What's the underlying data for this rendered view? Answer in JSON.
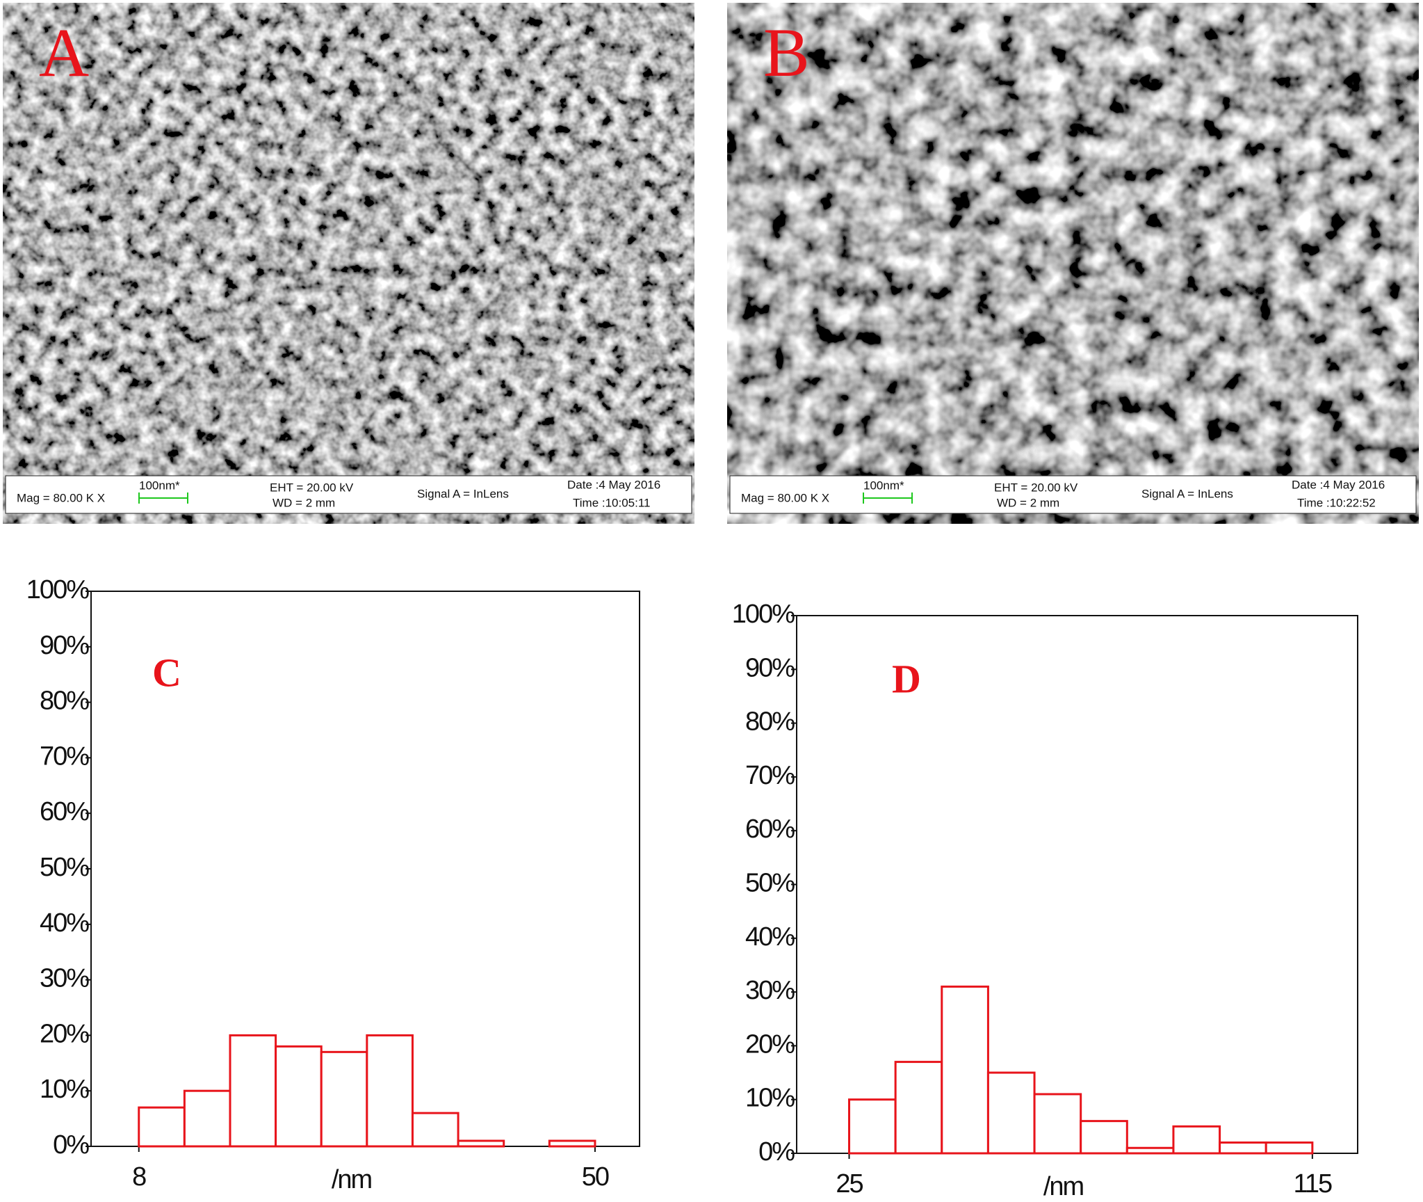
{
  "images": [
    {
      "label": "A",
      "mag": "Mag =  80.00 K X",
      "scale": "100nm*",
      "eht": "EHT = 20.00 kV",
      "wd": "WD =    2 mm",
      "signal": "Signal A = InLens",
      "date": "Date :4 May 2016",
      "time": "Time :10:05:11"
    },
    {
      "label": "B",
      "mag": "Mag =  80.00 K X",
      "scale": "100nm*",
      "eht": "EHT = 20.00 kV",
      "wd": "WD =    2 mm",
      "signal": "Signal A = InLens",
      "date": "Date :4 May 2016",
      "time": "Time :10:22:52"
    }
  ],
  "chart_data": [
    {
      "type": "histogram",
      "annotation": "C",
      "xlabel": "/nm",
      "color": "#e8141b",
      "bins": [
        8,
        12.2,
        16.4,
        20.6,
        24.8,
        29,
        33.2,
        37.4,
        41.6,
        45.8,
        50
      ],
      "values": [
        7,
        10,
        20,
        18,
        17,
        20,
        6,
        1,
        0,
        1
      ],
      "xlim": [
        3.6,
        54.1
      ],
      "xticks": [
        8,
        50
      ],
      "ylim": [
        0,
        100
      ],
      "yticks": [
        {
          "value": 0,
          "label": "0%"
        },
        {
          "value": 10,
          "label": "10%"
        },
        {
          "value": 20,
          "label": "20%"
        },
        {
          "value": 30,
          "label": "30%"
        },
        {
          "value": 40,
          "label": "40%"
        },
        {
          "value": 50,
          "label": "50%"
        },
        {
          "value": 60,
          "label": "60%"
        },
        {
          "value": 70,
          "label": "70%"
        },
        {
          "value": 80,
          "label": "80%"
        },
        {
          "value": 90,
          "label": "90%"
        },
        {
          "value": 100,
          "label": "100%"
        }
      ]
    },
    {
      "type": "histogram",
      "annotation": "D",
      "xlabel": "/nm",
      "color": "#e8141b",
      "bins": [
        25,
        34,
        43,
        52,
        61,
        70,
        79,
        88,
        97,
        106,
        115
      ],
      "values": [
        10,
        17,
        31,
        15,
        11,
        6,
        1,
        5,
        2,
        2
      ],
      "xlim": [
        14.8,
        123.8
      ],
      "xticks": [
        25,
        115
      ],
      "ylim": [
        0,
        100
      ],
      "yticks": [
        {
          "value": 0,
          "label": "0%"
        },
        {
          "value": 10,
          "label": "10%"
        },
        {
          "value": 20,
          "label": "20%"
        },
        {
          "value": 30,
          "label": "30%"
        },
        {
          "value": 40,
          "label": "40%"
        },
        {
          "value": 50,
          "label": "50%"
        },
        {
          "value": 60,
          "label": "60%"
        },
        {
          "value": 70,
          "label": "70%"
        },
        {
          "value": 80,
          "label": "80%"
        },
        {
          "value": 90,
          "label": "90%"
        },
        {
          "value": 100,
          "label": "100%"
        }
      ]
    }
  ]
}
